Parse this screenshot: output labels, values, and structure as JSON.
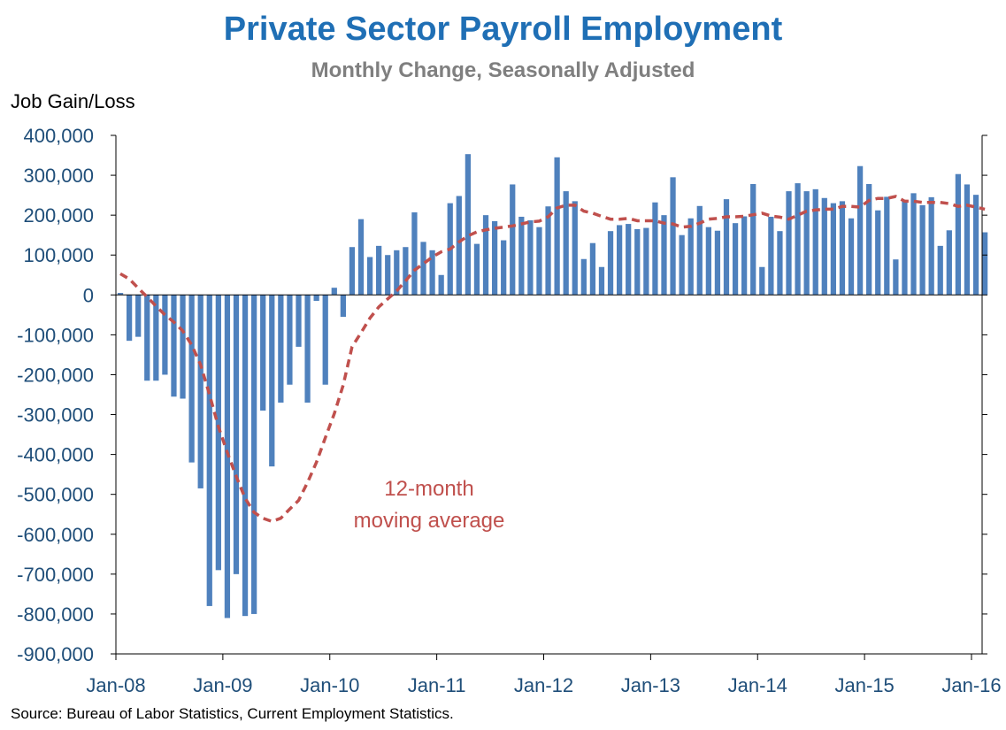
{
  "chart_data": {
    "type": "bar",
    "title": "Private Sector Payroll Employment",
    "subtitle": "Monthly Change, Seasonally Adjusted",
    "ylabel": "Job Gain/Loss",
    "xlabel": "",
    "ylim": [
      -900000,
      400000
    ],
    "yticks": [
      400000,
      300000,
      200000,
      100000,
      0,
      -100000,
      -200000,
      -300000,
      -400000,
      -500000,
      -600000,
      -700000,
      -800000,
      -900000
    ],
    "ytick_labels": [
      "400,000",
      "300,000",
      "200,000",
      "100,000",
      "0",
      "-100,000",
      "-200,000",
      "-300,000",
      "-400,000",
      "-500,000",
      "-600,000",
      "-700,000",
      "-800,000",
      "-900,000"
    ],
    "xtick_labels": [
      "Jan-08",
      "Jan-09",
      "Jan-10",
      "Jan-11",
      "Jan-12",
      "Jan-13",
      "Jan-14",
      "Jan-15",
      "Jan-16"
    ],
    "x_start": "Jan-08",
    "x_end": "Jan-16",
    "bar_color": "#4f81bd",
    "line_color": "#c0504d",
    "series": [
      {
        "type": "bar",
        "start_month": "Jan-08",
        "values": [
          5000,
          -115000,
          -105000,
          -215000,
          -215000,
          -200000,
          -255000,
          -260000,
          -420000,
          -485000,
          -780000,
          -690000,
          -810000,
          -700000,
          -805000,
          -800000,
          -290000,
          -430000,
          -270000,
          -225000,
          -130000,
          -270000,
          -15000,
          -225000,
          18000,
          -55000,
          120000,
          190000,
          95000,
          123000,
          100000,
          112000,
          120000,
          207000,
          133000,
          112000,
          50000,
          230000,
          248000,
          353000,
          128000,
          200000,
          185000,
          137000,
          277000,
          196000,
          187000,
          170000,
          222000,
          345000,
          260000,
          235000,
          90000,
          130000,
          70000,
          160000,
          175000,
          178000,
          165000,
          168000,
          232000,
          200000,
          295000,
          150000,
          192000,
          223000,
          170000,
          161000,
          240000,
          180000,
          197000,
          278000,
          70000,
          196000,
          160000,
          260000,
          280000,
          260000,
          265000,
          243000,
          230000,
          235000,
          192000,
          323000,
          278000,
          212000,
          246000,
          89000,
          237000,
          255000,
          225000,
          245000,
          123000,
          162000,
          303000,
          277000,
          251000,
          157000
        ]
      },
      {
        "type": "line",
        "style": "dashed",
        "start_month": "Jan-08",
        "values": [
          53000,
          40000,
          17000,
          -5000,
          -28000,
          -50000,
          -68000,
          -90000,
          -125000,
          -175000,
          -250000,
          -330000,
          -395000,
          -455000,
          -510000,
          -545000,
          -560000,
          -568000,
          -560000,
          -537000,
          -515000,
          -470000,
          -420000,
          -358000,
          -298000,
          -226000,
          -130000,
          -95000,
          -58000,
          -30000,
          -10000,
          10000,
          35000,
          62000,
          78000,
          95000,
          108000,
          115000,
          133000,
          148000,
          158000,
          163000,
          167000,
          170000,
          173000,
          178000,
          183000,
          185000,
          196000,
          218000,
          225000,
          225000,
          210000,
          205000,
          197000,
          190000,
          190000,
          192000,
          186000,
          186000,
          186000,
          180000,
          178000,
          170000,
          172000,
          180000,
          190000,
          192000,
          196000,
          196000,
          197000,
          201000,
          205000,
          198000,
          195000,
          190000,
          200000,
          210000,
          213000,
          215000,
          215000,
          222000,
          222000,
          220000,
          237000,
          242000,
          242000,
          247000,
          235000,
          235000,
          232000,
          232000,
          232000,
          229000,
          222000,
          225000,
          220000,
          215000
        ]
      }
    ],
    "annotation": [
      "12-month",
      "moving average"
    ]
  },
  "source": "Source: Bureau of Labor Statistics, Current Employment  Statistics."
}
